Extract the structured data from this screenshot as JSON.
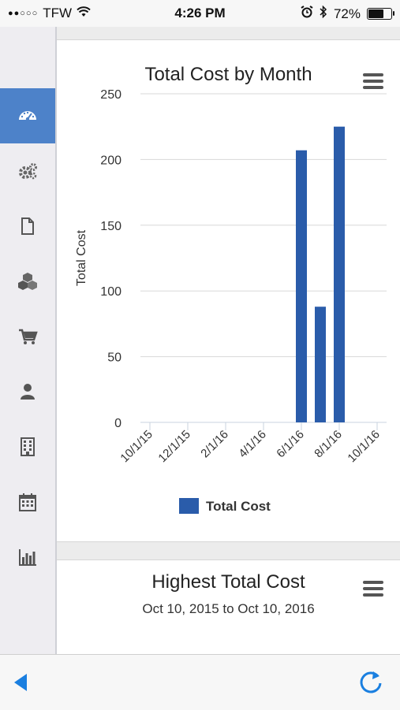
{
  "status_bar": {
    "signal": "●●○○○",
    "carrier": "TFW",
    "time": "4:26 PM",
    "battery_percent": "72%",
    "battery_level": 0.72,
    "icons": [
      "wifi-icon",
      "alarm-icon",
      "bluetooth-icon",
      "battery-icon"
    ]
  },
  "sidebar": {
    "items": [
      {
        "icon": "dashboard-icon",
        "active": true
      },
      {
        "icon": "gears-icon",
        "active": false
      },
      {
        "icon": "document-icon",
        "active": false
      },
      {
        "icon": "cubes-icon",
        "active": false
      },
      {
        "icon": "cart-icon",
        "active": false
      },
      {
        "icon": "user-icon",
        "active": false
      },
      {
        "icon": "building-icon",
        "active": false
      },
      {
        "icon": "calendar-icon",
        "active": false
      },
      {
        "icon": "bar-chart-icon",
        "active": false
      }
    ]
  },
  "card1": {
    "title": "Total Cost by Month"
  },
  "card2": {
    "title": "Highest Total Cost",
    "subtitle": "Oct 10, 2015 to Oct 10, 2016"
  },
  "chart_data": {
    "type": "bar",
    "title": "Total Cost by Month",
    "ylabel": "Total Cost",
    "xlabel": "",
    "ylim": [
      0,
      250
    ],
    "yticks": [
      0,
      50,
      100,
      150,
      200,
      250
    ],
    "x_tick_labels": [
      "10/1/15",
      "12/1/15",
      "2/1/16",
      "4/1/16",
      "6/1/16",
      "8/1/16",
      "10/1/16"
    ],
    "categories": [
      "10/1/15",
      "11/1/15",
      "12/1/15",
      "1/1/16",
      "2/1/16",
      "3/1/16",
      "4/1/16",
      "5/1/16",
      "6/1/16",
      "7/1/16",
      "8/1/16",
      "9/1/16",
      "10/1/16"
    ],
    "series": [
      {
        "name": "Total Cost",
        "values": [
          0,
          0,
          0,
          0,
          0,
          0,
          0,
          0,
          207,
          88,
          225,
          0,
          0
        ],
        "color": "#2a5caa"
      }
    ],
    "legend_position": "bottom-center",
    "grid": true
  },
  "colors": {
    "accent": "#4d82c9",
    "bar": "#2a5caa",
    "ios_blue": "#1a7fe0"
  },
  "toolbar": {
    "back_icon": "back-arrow-icon",
    "refresh_icon": "refresh-icon"
  }
}
